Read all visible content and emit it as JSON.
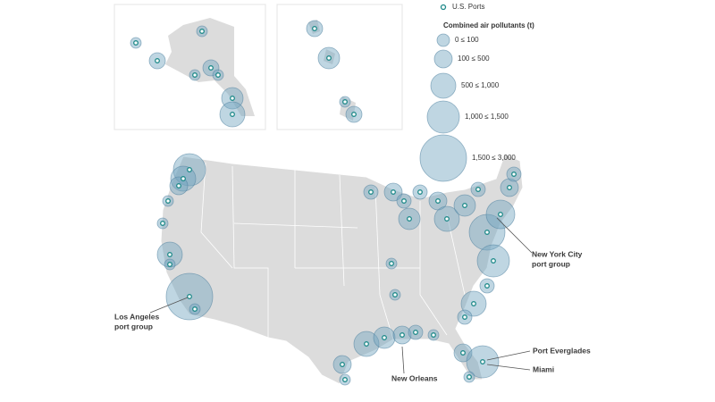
{
  "legend": {
    "ports": "U.S. Ports",
    "title": "Combined air pollutants (t)",
    "bins": [
      "0 ≤ 100",
      "100 ≤ 500",
      "500 ≤ 1,000",
      "1,000 ≤ 1,500",
      "1,500 ≤ 3,000"
    ]
  },
  "labels": [
    {
      "lines": [
        "Los Angeles",
        "port group"
      ]
    },
    {
      "lines": [
        "New York City",
        "port group"
      ]
    },
    {
      "lines": [
        "New Orleans"
      ]
    },
    {
      "lines": [
        "Port Everglades"
      ]
    },
    {
      "lines": [
        "Miami"
      ]
    }
  ]
}
